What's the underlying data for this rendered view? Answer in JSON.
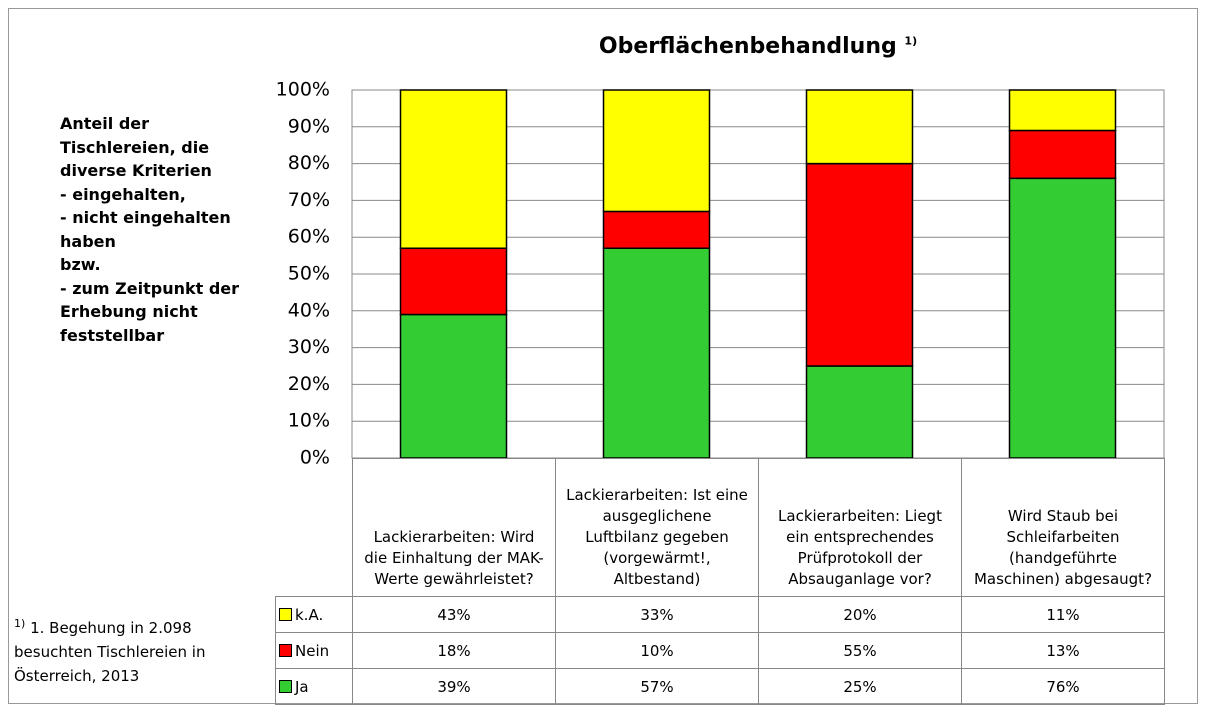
{
  "chart_data": {
    "type": "stacked_bar",
    "title": "Oberflächenbehandlung",
    "title_marker": "1)",
    "description": [
      "Anteil der",
      "Tischlereien, die",
      "diverse Kriterien",
      "- eingehalten,",
      "- nicht eingehalten",
      "haben",
      "bzw.",
      "- zum Zeitpunkt der",
      "Erhebung nicht",
      "feststellbar"
    ],
    "footnote": {
      "marker": "1)",
      "text": "1. Begehung in 2.098 besuchten Tischlereien in Österreich, 2013"
    },
    "categories": [
      "Lackierarbeiten: Wird die Einhaltung der MAK-Werte gewährleistet?",
      "Lackierarbeiten: Ist eine ausgeglichene Luftbilanz gegeben (vorgewärmt!, Altbestand)",
      "Lackierarbeiten: Liegt ein entsprechendes Prüfprotokoll der Absauganlage vor?",
      "Wird Staub bei Schleifarbeiten (handgeführte Maschinen) abgesaugt?"
    ],
    "series": [
      {
        "name": "Ja",
        "color": "#33cc33",
        "values": [
          39,
          57,
          25,
          76
        ],
        "value_labels": [
          "39%",
          "57%",
          "25%",
          "76%"
        ]
      },
      {
        "name": "Nein",
        "color": "#ff0000",
        "values": [
          18,
          10,
          55,
          13
        ],
        "value_labels": [
          "18%",
          "10%",
          "55%",
          "13%"
        ]
      },
      {
        "name": "k.A.",
        "color": "#ffff00",
        "values": [
          43,
          33,
          20,
          11
        ],
        "value_labels": [
          "43%",
          "33%",
          "20%",
          "11%"
        ]
      }
    ],
    "ylim": [
      0,
      100
    ],
    "yticks": [
      {
        "value": 0,
        "label": "0%"
      },
      {
        "value": 10,
        "label": "10%"
      },
      {
        "value": 20,
        "label": "20%"
      },
      {
        "value": 30,
        "label": "30%"
      },
      {
        "value": 40,
        "label": "40%"
      },
      {
        "value": 50,
        "label": "50%"
      },
      {
        "value": 60,
        "label": "60%"
      },
      {
        "value": 70,
        "label": "70%"
      },
      {
        "value": 80,
        "label": "80%"
      },
      {
        "value": 90,
        "label": "90%"
      },
      {
        "value": 100,
        "label": "100%"
      }
    ],
    "grid": true
  }
}
